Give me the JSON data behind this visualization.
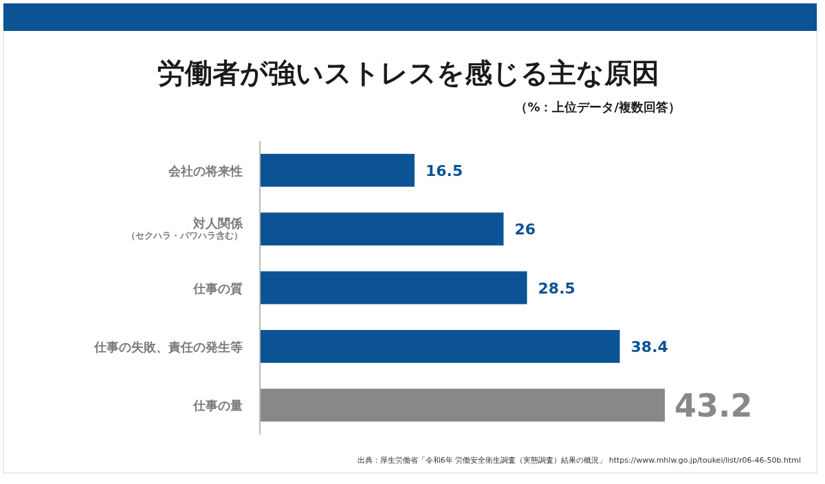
{
  "chart_data": {
    "type": "bar",
    "orientation": "horizontal",
    "title": "労働者が強いストレスを感じる主な原因",
    "subtitle": "（%：上位データ/複数回答）",
    "categories": [
      "会社の将来性",
      "対人関係（セクハラ・パワハラ含む）",
      "仕事の質",
      "仕事の失敗、責任の発生等",
      "仕事の量"
    ],
    "values": [
      16.5,
      26,
      28.5,
      38.4,
      43.2
    ],
    "colors": [
      "#0b5394",
      "#0b5394",
      "#0b5394",
      "#0b5394",
      "#8a8789"
    ],
    "data_labels": true,
    "annotations": [
      "出典：厚生労働省「令和6年 労働安全衛生調査（実態調査）結果の概況」 https://www.mhlw.go.jp/toukei/list/r06-46-50b.html"
    ]
  }
}
